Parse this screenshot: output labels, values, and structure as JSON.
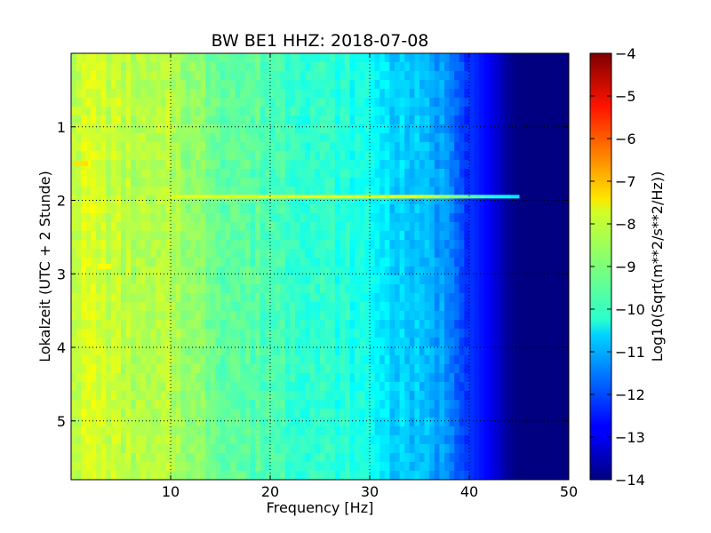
{
  "chart_data": {
    "type": "heatmap",
    "title": "BW BE1 HHZ: 2018-07-08",
    "xlabel": "Frequency [Hz]",
    "ylabel": "Lokalzeit (UTC + 2 Stunde)",
    "colorbar_label": "Log10(Sqrt(m**2/s**2/Hz))",
    "xlim": [
      0,
      50
    ],
    "ylim": [
      0,
      5.8
    ],
    "y_inverted": true,
    "x_ticks": [
      10,
      20,
      30,
      40,
      50
    ],
    "x_tick_labels": [
      "10",
      "20",
      "30",
      "40",
      "50"
    ],
    "y_ticks": [
      1,
      2,
      3,
      4,
      5
    ],
    "y_tick_labels": [
      "1",
      "2",
      "3",
      "4",
      "5"
    ],
    "colorbar_range": [
      -14,
      -4
    ],
    "colorbar_ticks": [
      -4,
      -5,
      -6,
      -7,
      -8,
      -9,
      -10,
      -11,
      -12,
      -13,
      -14
    ],
    "colorbar_tick_labels": [
      "−4",
      "−5",
      "−6",
      "−7",
      "−8",
      "−9",
      "−10",
      "−11",
      "−12",
      "−13",
      "−14"
    ],
    "colormap": "jet",
    "grid": true,
    "spectrum_profile": {
      "frequency": [
        0,
        2,
        5,
        8,
        10,
        12,
        15,
        20,
        25,
        30,
        32,
        35,
        38,
        40,
        42,
        44,
        45,
        50
      ],
      "level": [
        -8.3,
        -8.1,
        -8.4,
        -8.6,
        -8.5,
        -8.8,
        -9.2,
        -9.5,
        -9.8,
        -10.1,
        -10.6,
        -10.9,
        -11.3,
        -12.2,
        -12.8,
        -13.8,
        -14,
        -14
      ]
    },
    "features": [
      {
        "type": "horizontal-band",
        "time": 1.95,
        "freq_range": [
          10,
          45
        ],
        "level": -8.0
      },
      {
        "type": "spot",
        "time": 1.5,
        "freq": 1,
        "level": -7.5
      },
      {
        "type": "spot",
        "time": 2.9,
        "freq": 3.3,
        "level": -7.8
      }
    ]
  }
}
